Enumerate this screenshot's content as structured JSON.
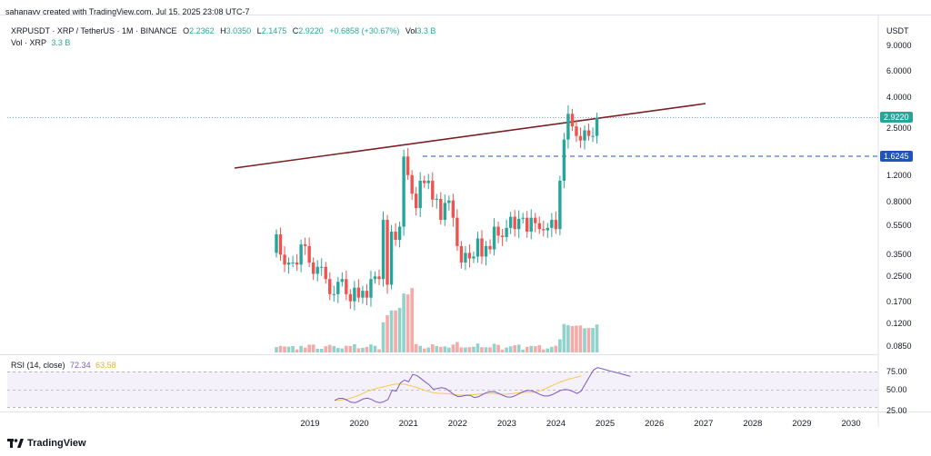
{
  "header": {
    "credit": "sahanavv created with TradingView.com, Jul 15, 2025 23:08 UTC-7",
    "symbol": "XRPUSDT · XRP / TetherUS · 1M · BINANCE",
    "o_label": "O",
    "o_value": "2.2362",
    "h_label": "H",
    "h_value": "3.0350",
    "l_label": "L",
    "l_value": "2.1475",
    "c_label": "C",
    "c_value": "2.9220",
    "change": "+0.6858 (+30.67%)",
    "vol_label": "Vol",
    "vol_value": "3.3 B",
    "vol_pane_label": "Vol · XRP",
    "vol_pane_value": "3.3 B"
  },
  "price_axis": {
    "currency": "USDT",
    "ticks": [
      "9.0000",
      "6.0000",
      "4.0000",
      "2.5000",
      "1.2000",
      "0.8000",
      "0.5500",
      "0.3500",
      "0.2500",
      "0.1700",
      "0.1200",
      "0.0850"
    ],
    "last_price_tag": "2.9220",
    "level_tag": "1.6245"
  },
  "rsi": {
    "label": "RSI (14, close)",
    "value1": "72.34",
    "value2": "63.58",
    "ticks": [
      "75.00",
      "50.00",
      "25.00"
    ],
    "rsi_color": "#7e57c2",
    "ma_color": "#f7c948"
  },
  "time_axis": [
    "2019",
    "2020",
    "2021",
    "2022",
    "2023",
    "2024",
    "2025",
    "2026",
    "2027",
    "2028",
    "2029",
    "2030"
  ],
  "colors": {
    "up": "#26a69a",
    "down": "#ef5350",
    "trendline": "#7b1f23",
    "level": "#1e53b8",
    "last_tag": "#26a69a",
    "level_tag": "#1e53b8"
  },
  "chart_data": {
    "type": "candlestick",
    "symbol": "XRPUSDT",
    "interval": "1M",
    "scale": "log",
    "ylim": [
      0.085,
      9.0
    ],
    "trendline": {
      "from": [
        "2018-12",
        1.35
      ],
      "to": [
        "2027-01",
        3.7
      ]
    },
    "horizontal_level": 1.6245,
    "candles": [
      {
        "t": "2018-12",
        "o": 0.36,
        "h": 0.44,
        "l": 0.27,
        "c": 0.35
      },
      {
        "t": "2019-03",
        "o": 0.31,
        "h": 0.5,
        "l": 0.3,
        "c": 0.31
      },
      {
        "t": "2019-09",
        "o": 0.25,
        "h": 0.31,
        "l": 0.24,
        "c": 0.29
      },
      {
        "t": "2020-03",
        "o": 0.24,
        "h": 0.25,
        "l": 0.12,
        "c": 0.17
      },
      {
        "t": "2020-11",
        "o": 0.24,
        "h": 0.78,
        "l": 0.23,
        "c": 0.53
      },
      {
        "t": "2021-04",
        "o": 0.57,
        "h": 1.96,
        "l": 0.55,
        "c": 1.6
      },
      {
        "t": "2021-09",
        "o": 1.1,
        "h": 1.41,
        "l": 0.9,
        "c": 1.06
      },
      {
        "t": "2022-06",
        "o": 0.4,
        "h": 0.46,
        "l": 0.29,
        "c": 0.33
      },
      {
        "t": "2023-07",
        "o": 0.47,
        "h": 0.94,
        "l": 0.46,
        "c": 0.7
      },
      {
        "t": "2024-11",
        "o": 0.5,
        "h": 1.63,
        "l": 0.5,
        "c": 1.6
      },
      {
        "t": "2025-01",
        "o": 2.08,
        "h": 3.4,
        "l": 2.0,
        "c": 3.1
      },
      {
        "t": "2025-07",
        "o": 2.2362,
        "h": 3.035,
        "l": 2.1475,
        "c": 2.922
      }
    ],
    "rsi_series": "RSI (14, close)",
    "rsi_last": 72.34,
    "rsi_ma_last": 63.58
  }
}
